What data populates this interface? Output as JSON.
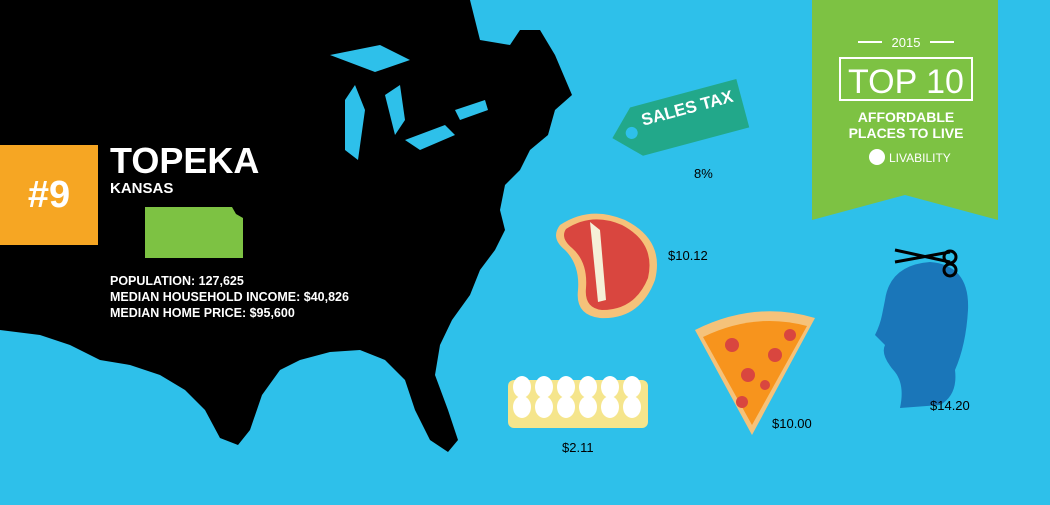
{
  "rank": "#9",
  "city": "TOPEKA",
  "state": "KANSAS",
  "stats": [
    "POPULATION: 127,625",
    "MEDIAN HOUSEHOLD INCOME: $40,826",
    "MEDIAN HOME PRICE: $95,600"
  ],
  "items": [
    {
      "label": "SALES TAX",
      "price": "8%"
    },
    {
      "label": null,
      "price": "$10.12"
    },
    {
      "label": null,
      "price": "$2.11"
    },
    {
      "label": null,
      "price": "$10.00"
    },
    {
      "label": null,
      "price": "$14.20"
    }
  ],
  "badge": {
    "year": "2015",
    "title": "TOP 10",
    "subtitle": [
      "AFFORDABLE",
      "PLACES TO LIVE"
    ],
    "brand": "LIVABILITY"
  }
}
